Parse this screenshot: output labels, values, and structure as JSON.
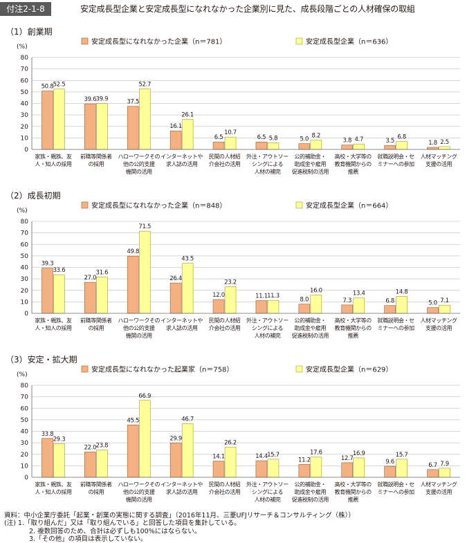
{
  "figure": {
    "label": "付注2-1-8",
    "title": "安定成長型企業と安定成長型になれなかった企業別に見た、成長段階ごとの人材確保の取組"
  },
  "colors": {
    "series_a": "#F4B183",
    "series_b": "#FFFF99",
    "series_a_stroke": "#9c5a2a",
    "series_b_stroke": "#9a9a40",
    "grid": "#c8c8c8",
    "axis": "#666666"
  },
  "chart_data": [
    {
      "type": "bar",
      "title": "（1）創業期",
      "ylabel": "(%)",
      "ylim": [
        0,
        80
      ],
      "yticks": [
        "0",
        "10",
        "20",
        "30",
        "40",
        "50",
        "60",
        "70",
        "80"
      ],
      "categories": [
        [
          "家族・親族、友",
          "人・知人の採用"
        ],
        [
          "前職等関係者",
          "の採用"
        ],
        [
          "ハローワークその",
          "他の公的支援",
          "機関の活用"
        ],
        [
          "インターネットや",
          "求人誌の活用"
        ],
        [
          "民間の人材紹",
          "介会社の活用"
        ],
        [
          "外注・アウトソー",
          "シングによる",
          "人材の補完"
        ],
        [
          "公的補助金・",
          "助成金や雇用",
          "促進税制の活用"
        ],
        [
          "高校・大学等の",
          "教育機関からの",
          "推薦"
        ],
        [
          "就職説明会・セ",
          "ミナーへの参加"
        ],
        [
          "人材マッチング",
          "支援の活用"
        ]
      ],
      "series": [
        {
          "name": "安定成長型になれなかった企業（n＝781）",
          "values": [
            50.8,
            39.6,
            37.5,
            16.1,
            6.5,
            6.5,
            5.0,
            3.8,
            3.5,
            1.8
          ],
          "labels": [
            "50.8",
            "39.6",
            "37.5",
            "16.1",
            "6.5",
            "6.5",
            "5.0",
            "3.8",
            "3.5",
            "1.8"
          ]
        },
        {
          "name": "安定成長型企業（n＝636）",
          "values": [
            52.5,
            39.9,
            52.7,
            26.1,
            10.7,
            5.8,
            8.2,
            4.7,
            6.8,
            2.5
          ],
          "labels": [
            "52.5",
            "39.9",
            "52.7",
            "26.1",
            "10.7",
            "5.8",
            "8.2",
            "4.7",
            "6.8",
            "2.5"
          ]
        }
      ]
    },
    {
      "type": "bar",
      "title": "（2）成長初期",
      "ylabel": "(%)",
      "ylim": [
        0,
        80
      ],
      "yticks": [
        "0",
        "10",
        "20",
        "30",
        "40",
        "50",
        "60",
        "70",
        "80"
      ],
      "categories": [
        [
          "家族・親族、友",
          "人・知人の採用"
        ],
        [
          "前職等関係者",
          "の採用"
        ],
        [
          "ハローワークその",
          "他の公的支援",
          "機関の活用"
        ],
        [
          "インターネットや",
          "求人誌の活用"
        ],
        [
          "民間の人材紹",
          "介会社の活用"
        ],
        [
          "外注・アウトソー",
          "シングによる",
          "人材の補完"
        ],
        [
          "公的補助金・",
          "助成金や雇用",
          "促進税制の活用"
        ],
        [
          "高校・大学等の",
          "教育機関からの",
          "推薦"
        ],
        [
          "就職説明会・セ",
          "ミナーへの参加"
        ],
        [
          "人材マッチング",
          "支援の活用"
        ]
      ],
      "series": [
        {
          "name": "安定成長型になれなかった企業（n＝848）",
          "values": [
            39.3,
            27.0,
            49.8,
            26.4,
            12.0,
            11.1,
            8.0,
            7.3,
            6.8,
            5.0
          ],
          "labels": [
            "39.3",
            "27.0",
            "49.8",
            "26.4",
            "12.0",
            "11.1",
            "8.0",
            "7.3",
            "6.8",
            "5.0"
          ]
        },
        {
          "name": "安定成長型企業（n＝664）",
          "values": [
            33.6,
            31.6,
            71.5,
            43.5,
            23.2,
            11.3,
            16.0,
            13.4,
            14.8,
            7.1
          ],
          "labels": [
            "33.6",
            "31.6",
            "71.5",
            "43.5",
            "23.2",
            "11.3",
            "16.0",
            "13.4",
            "14.8",
            "7.1"
          ]
        }
      ]
    },
    {
      "type": "bar",
      "title": "（3）安定・拡大期",
      "ylabel": "(%)",
      "ylim": [
        0,
        80
      ],
      "yticks": [
        "0",
        "10",
        "20",
        "30",
        "40",
        "50",
        "60",
        "70",
        "80"
      ],
      "categories": [
        [
          "家族・親族、友",
          "人・知人の採用"
        ],
        [
          "前職等関係者",
          "の採用"
        ],
        [
          "ハローワークその",
          "他の公的支援",
          "機関の活用"
        ],
        [
          "インターネットや",
          "求人誌の活用"
        ],
        [
          "民間の人材紹",
          "介会社の活用"
        ],
        [
          "外注・アウトソー",
          "シングによる",
          "人材の補完"
        ],
        [
          "公的補助金・",
          "助成金や雇用",
          "促進税制の活用"
        ],
        [
          "高校・大学等の",
          "教育機関からの",
          "推薦"
        ],
        [
          "就職説明会・セ",
          "ミナーへの参加"
        ],
        [
          "人材マッチング",
          "支援の活用"
        ]
      ],
      "series": [
        {
          "name": "安定成長型になれなかった起業家（n＝758）",
          "values": [
            33.8,
            22.0,
            45.5,
            29.9,
            14.1,
            14.4,
            11.2,
            12.7,
            9.6,
            6.7
          ],
          "labels": [
            "33.8",
            "22.0",
            "45.5",
            "29.9",
            "14.1",
            "14.4",
            "11.2",
            "12.7",
            "9.6",
            "6.7"
          ]
        },
        {
          "name": "安定成長型企業（n＝629）",
          "values": [
            29.3,
            23.8,
            66.9,
            46.7,
            26.2,
            15.7,
            17.6,
            16.9,
            15.7,
            7.9
          ],
          "labels": [
            "29.3",
            "23.8",
            "66.9",
            "46.7",
            "26.2",
            "15.7",
            "17.6",
            "16.9",
            "15.7",
            "7.9"
          ]
        }
      ]
    }
  ],
  "notes": {
    "source": "資料：中小企業庁委託「起業・創業の実態に関する調査」（2016年11月、三菱UFJリサーチ＆コンサルティング（株））",
    "note1": "(注) 1.「取り組んだ」又は「取り組んでいる」と回答した項目を集計している。",
    "note2": "2. 複数回答のため、合計は必ずしも100%にはならない。",
    "note3": "3.「その他」の項目は表示していない。"
  }
}
